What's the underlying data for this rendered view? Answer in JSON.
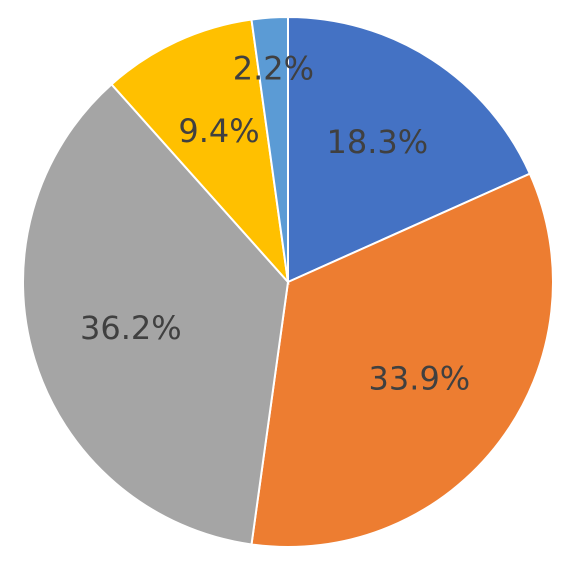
{
  "chart_data": {
    "type": "pie",
    "values": [
      18.3,
      33.9,
      36.2,
      9.4,
      2.2
    ],
    "value_labels": [
      "18.3%",
      "33.9%",
      "36.2%",
      "9.4%",
      "2.2%"
    ],
    "colors": [
      "#4472c4",
      "#ed7d31",
      "#a5a5a5",
      "#ffc000",
      "#5b9bd5"
    ]
  }
}
